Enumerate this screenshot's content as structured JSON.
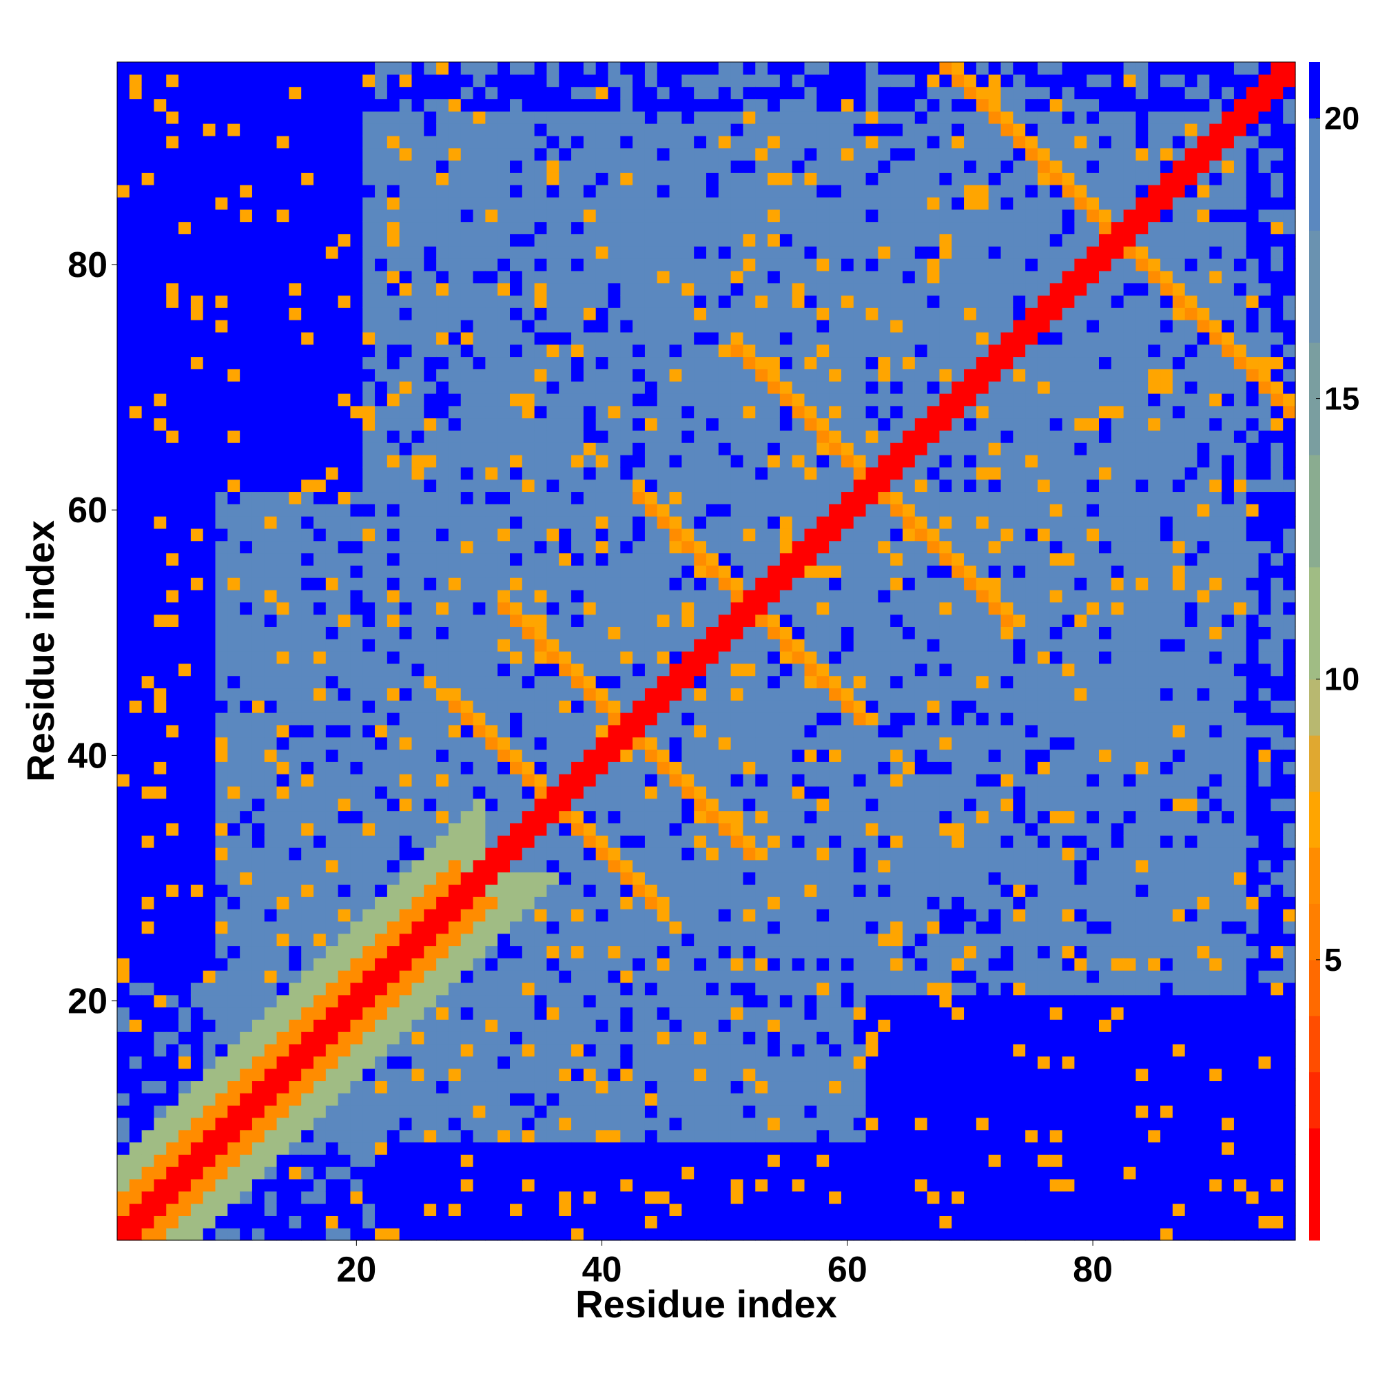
{
  "chart_data": {
    "type": "heatmap",
    "title": "",
    "xlabel": "Residue index",
    "ylabel": "Residue index",
    "n_residues": 96,
    "xlim": [
      1,
      96
    ],
    "ylim": [
      1,
      96
    ],
    "x_ticks": [
      20,
      40,
      60,
      80
    ],
    "y_ticks": [
      20,
      40,
      60,
      80
    ],
    "x_tick_labels": [
      "20",
      "40",
      "60",
      "80"
    ],
    "y_tick_labels": [
      "20",
      "40",
      "60",
      "80"
    ],
    "colorbar": {
      "range": [
        0,
        21
      ],
      "ticks": [
        5,
        10,
        15,
        20
      ],
      "tick_labels": [
        "5",
        "10",
        "15",
        "20"
      ],
      "colors": {
        "contact_max": "#ff0000",
        "close": "#ff8c00",
        "near": "#ffa500",
        "mid": "#a0bc84",
        "far": "#5b88bf",
        "beyond": "#0000ff"
      }
    },
    "matrix": "symmetric distance map; strong diagonal (0-2) with orange band, anti-diagonal hairpin arms centered near residues 36, 42, 52, 62 and 82; regions beyond ~20 shown in blue",
    "hairpins": [
      {
        "center": 36,
        "arm_length": 8
      },
      {
        "center": 42,
        "arm_length": 10
      },
      {
        "center": 52,
        "arm_length": 9
      },
      {
        "center": 62,
        "arm_length": 11
      },
      {
        "center": 82,
        "arm_length": 14
      }
    ],
    "grid": false,
    "legend": "colorbar-right"
  }
}
